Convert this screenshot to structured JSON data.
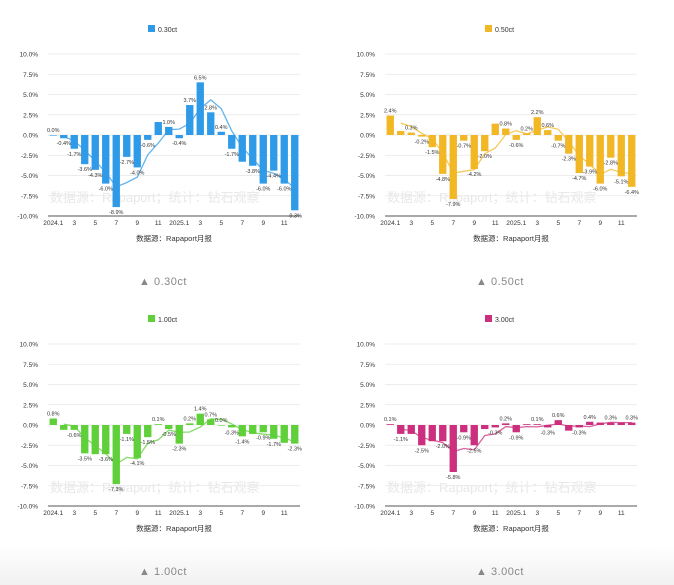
{
  "chart_data": [
    {
      "type": "bar",
      "title": "",
      "legend": "0.30ct",
      "color": "#2f9be8",
      "source": "数据源：Rapaport月报",
      "watermark": "数据源：Rapaport；统计：钻石观察",
      "caption": "0.30ct",
      "ylim": [
        -10,
        10
      ],
      "yticks": [
        "10.0%",
        "7.5%",
        "5.0%",
        "2.5%",
        "0.0%",
        "-2.5%",
        "-5.0%",
        "-7.5%",
        "-10.0%"
      ],
      "xticks": [
        "2024.1",
        "3",
        "5",
        "7",
        "9",
        "11",
        "2025.1",
        "3",
        "5",
        "7",
        "9",
        "11"
      ],
      "values": [
        0.0,
        -0.4,
        -1.7,
        -3.6,
        -4.3,
        -6.0,
        -8.9,
        -2.7,
        -4.0,
        -0.6,
        1.6,
        1.0,
        -0.4,
        3.7,
        6.5,
        2.8,
        0.4,
        -1.7,
        -3.3,
        -3.8,
        -6.0,
        -4.4,
        -6.0,
        -9.3
      ],
      "labels": [
        "0.0%",
        "-0.4%",
        "-1.7%",
        "-3.6%",
        "-4.3%",
        "-6.0%",
        "-8.9%",
        "-2.7%",
        "-4.0%",
        "-0.6%",
        "",
        "1.0%",
        "-0.4%",
        "3.7%",
        "6.5%",
        "2.8%",
        "0.4%",
        "-1.7%",
        "",
        "-3.8%",
        "-6.0%",
        "-4.4%",
        "-6.0%",
        "-9.3%"
      ]
    },
    {
      "type": "bar",
      "title": "",
      "legend": "0.50ct",
      "color": "#f2b724",
      "source": "数据源：Rapaport月报",
      "watermark": "数据源：Rapaport；统计：钻石观察",
      "caption": "0.50ct",
      "ylim": [
        -10,
        10
      ],
      "yticks": [
        "10.0%",
        "7.5%",
        "5.0%",
        "2.5%",
        "0.0%",
        "-2.5%",
        "-5.0%",
        "-7.5%",
        "-10.0%"
      ],
      "xticks": [
        "2024.1",
        "3",
        "5",
        "7",
        "9",
        "11",
        "2025.1",
        "3",
        "5",
        "7",
        "9",
        "11"
      ],
      "values": [
        2.4,
        0.5,
        0.3,
        -0.2,
        -1.5,
        -4.8,
        -7.9,
        -0.7,
        -4.2,
        -2.0,
        1.4,
        0.8,
        -0.6,
        0.2,
        2.2,
        0.6,
        -0.7,
        -2.3,
        -4.7,
        -3.9,
        -6.0,
        -2.8,
        -5.1,
        -6.4
      ],
      "labels": [
        "2.4%",
        "",
        "0.3%",
        "-0.2%",
        "-1.5%",
        "-4.8%",
        "-7.9%",
        "-0.7%",
        "-4.2%",
        "-2.0%",
        "",
        "0.8%",
        "-0.6%",
        "0.2%",
        "2.2%",
        "0.6%",
        "-0.7%",
        "-2.3%",
        "-4.7%",
        "-3.9%",
        "-6.0%",
        "-2.8%",
        "-5.1%",
        "-6.4%"
      ]
    },
    {
      "type": "bar",
      "title": "",
      "legend": "1.00ct",
      "color": "#5fcf3a",
      "source": "数据源：Rapaport月报",
      "watermark": "数据源：Rapaport；统计：钻石观察",
      "caption": "1.00ct",
      "ylim": [
        -10,
        10
      ],
      "yticks": [
        "10.0%",
        "7.5%",
        "5.0%",
        "2.5%",
        "0.0%",
        "-2.5%",
        "-5.0%",
        "-7.5%",
        "-10.0%"
      ],
      "xticks": [
        "2024.1",
        "3",
        "5",
        "7",
        "9",
        "11",
        "2025.1",
        "3",
        "5",
        "7",
        "9",
        "11"
      ],
      "values": [
        0.8,
        -0.6,
        -0.6,
        -3.5,
        -3.6,
        -3.6,
        -7.3,
        -1.1,
        -4.1,
        -1.5,
        0.1,
        -0.5,
        -2.3,
        0.2,
        1.4,
        0.7,
        0.0,
        -0.3,
        -1.4,
        -1.1,
        -0.9,
        -1.7,
        -2.2,
        -2.3
      ],
      "labels": [
        "0.8%",
        "",
        "-0.6%",
        "-3.5%",
        "",
        "-3.6%",
        "-7.3%",
        "-1.1%",
        "-4.1%",
        "-1.5%",
        "0.1%",
        "-0.5%",
        "-2.3%",
        "0.2%",
        "1.4%",
        "0.7%",
        "0.0%",
        "-0.3%",
        "-1.4%",
        "",
        "-0.9%",
        "-1.7%",
        "",
        "-2.3%"
      ]
    },
    {
      "type": "bar",
      "title": "",
      "legend": "3.00ct",
      "color": "#cc2f7e",
      "source": "数据源：Rapaport月报",
      "watermark": "数据源：Rapaport；统计：钻石观察",
      "caption": "3.00ct",
      "ylim": [
        -10,
        10
      ],
      "yticks": [
        "10.0%",
        "7.5%",
        "5.0%",
        "2.5%",
        "0.0%",
        "-2.5%",
        "-5.0%",
        "-7.5%",
        "-10.0%"
      ],
      "xticks": [
        "2024.1",
        "3",
        "5",
        "7",
        "9",
        "11",
        "2025.1",
        "3",
        "5",
        "7",
        "9",
        "11"
      ],
      "values": [
        0.1,
        -1.1,
        -1.1,
        -2.5,
        -2.0,
        -2.0,
        -5.8,
        -0.9,
        -2.5,
        -0.5,
        -0.3,
        0.2,
        -0.9,
        0.1,
        0.1,
        -0.3,
        0.6,
        -0.7,
        -0.3,
        0.4,
        0.3,
        0.3,
        0.3,
        0.3
      ],
      "labels": [
        "0.1%",
        "-1.1%",
        "",
        "-2.5%",
        "",
        "-2.0%",
        "-5.8%",
        "-0.9%",
        "-2.5%",
        "",
        "-0.3%",
        "0.2%",
        "-0.9%",
        "",
        "0.1%",
        "-0.3%",
        "0.6%",
        "",
        "-0.3%",
        "0.4%",
        "",
        "0.3%",
        "",
        "0.3%"
      ]
    }
  ]
}
